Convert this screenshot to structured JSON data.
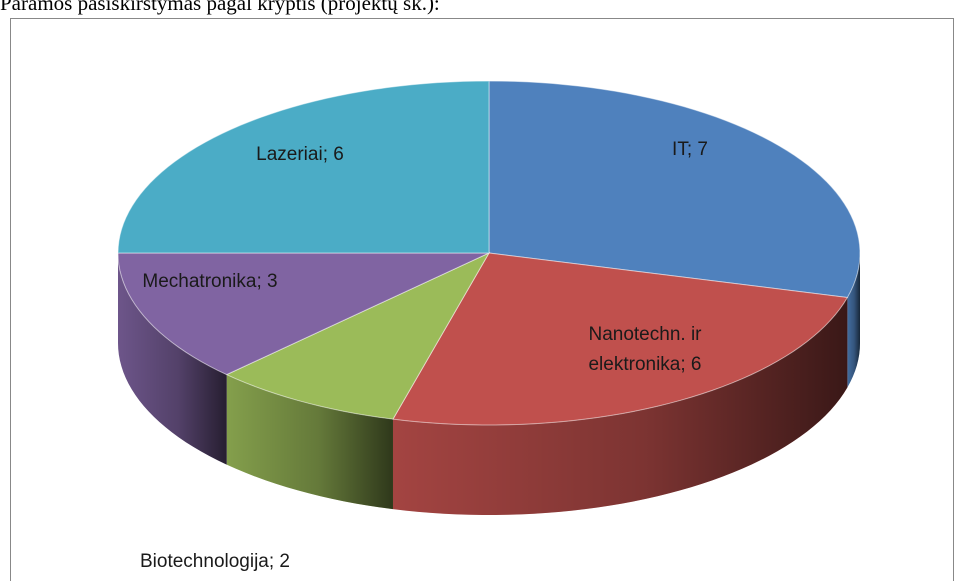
{
  "chart_data": {
    "type": "pie",
    "title": "Paramos pasiskirstymas pagal kryptis (projektų sk.):",
    "values": [
      7,
      6,
      2,
      3,
      6
    ],
    "value_labels": [
      "IT; 7",
      "Nanotechn. ir elektronika; 6",
      "Biotechnologija; 2",
      "Mechatronika; 3",
      "Lazeriai; 6"
    ],
    "colors": [
      "#4f81bd",
      "#c0504d",
      "#9bbb59",
      "#8064a2",
      "#4bacc6"
    ]
  }
}
